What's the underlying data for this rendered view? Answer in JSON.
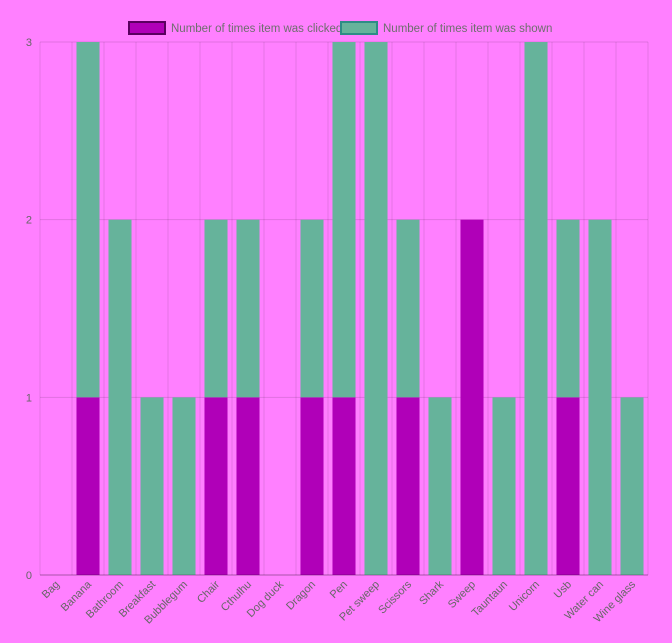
{
  "chart_data": {
    "type": "bar",
    "stacked": true,
    "categories": [
      "Bag",
      "Banana",
      "Bathroom",
      "Breakfast",
      "Bubblegum",
      "Chair",
      "Cthulhu",
      "Dog duck",
      "Dragon",
      "Pen",
      "Pet sweep",
      "Scissors",
      "Shark",
      "Sweep",
      "Tauntaun",
      "Unicorn",
      "Usb",
      "Water can",
      "Wine glass"
    ],
    "series": [
      {
        "name": "Number of times item was clicked",
        "values": [
          0,
          1,
          0,
          0,
          0,
          1,
          1,
          0,
          1,
          1,
          0,
          1,
          0,
          2,
          0,
          0,
          1,
          0,
          0
        ],
        "color": "#b000b8",
        "border": "#5a0060"
      },
      {
        "name": "Number of times item was shown",
        "values": [
          0,
          2,
          2,
          1,
          1,
          1,
          1,
          0,
          1,
          2,
          3,
          1,
          1,
          0,
          1,
          3,
          1,
          2,
          1
        ],
        "color": "#66b39b",
        "border": "#2e8c86"
      }
    ],
    "ylim": [
      0,
      3
    ],
    "yticks": [
      "0",
      "1",
      "2",
      "3"
    ],
    "grid": true,
    "legend": "top"
  }
}
